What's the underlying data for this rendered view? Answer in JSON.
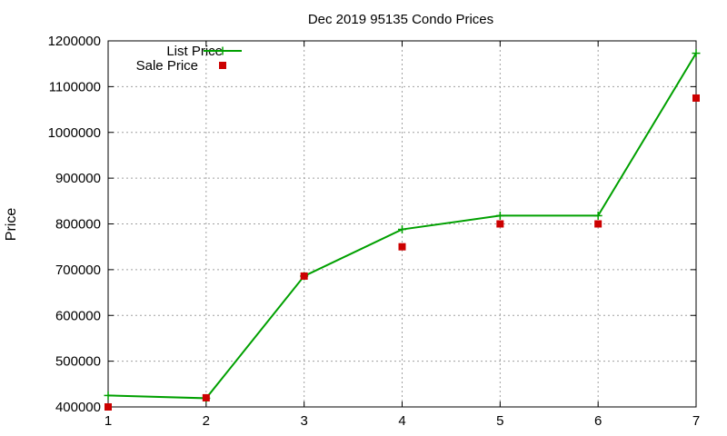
{
  "chart_data": {
    "type": "line",
    "title": "Dec 2019 95135 Condo Prices",
    "xlabel": "",
    "ylabel": "Price",
    "x": [
      1,
      2,
      3,
      4,
      5,
      6,
      7
    ],
    "xlim": [
      1,
      7
    ],
    "ylim": [
      400000,
      1200000
    ],
    "x_ticks": [
      "1",
      "2",
      "3",
      "4",
      "5",
      "6",
      "7"
    ],
    "y_ticks": [
      "400000",
      "500000",
      "600000",
      "700000",
      "800000",
      "900000",
      "1000000",
      "1100000",
      "1200000"
    ],
    "grid": true,
    "legend_position": "top-left",
    "series": [
      {
        "name": "List Price",
        "style": "line with plus markers",
        "color": "#00a000",
        "values": [
          425000,
          419000,
          686000,
          788000,
          818000,
          818000,
          1173000
        ]
      },
      {
        "name": "Sale Price",
        "style": "square markers",
        "color": "#cc0000",
        "values": [
          400000,
          420000,
          686000,
          750000,
          800000,
          800000,
          1075000
        ]
      }
    ]
  }
}
